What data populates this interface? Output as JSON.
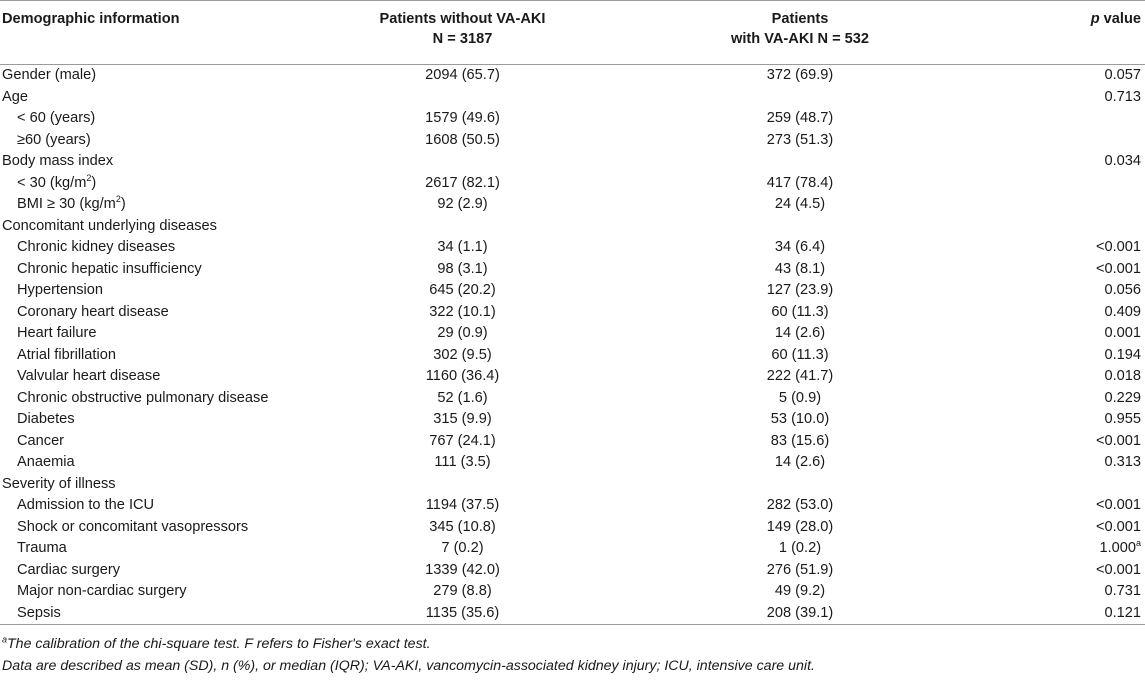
{
  "header": {
    "col1": "Demographic information",
    "col2_line1": "Patients without VA-AKI",
    "col2_line2": "N = 3187",
    "col3_line1": "Patients",
    "col3_line2": "with VA-AKI N = 532",
    "col4_italic": "p",
    "col4_rest": " value"
  },
  "rows": [
    {
      "label": "Gender (male)",
      "a": "2094 (65.7)",
      "b": "372 (69.9)",
      "p": "0.057"
    },
    {
      "label": "Age",
      "a": "",
      "b": "",
      "p": "0.713"
    },
    {
      "label": "< 60 (years)",
      "a": "1579 (49.6)",
      "b": "259 (48.7)",
      "p": ""
    },
    {
      "label": "≥60 (years)",
      "a": "1608 (50.5)",
      "b": "273 (51.3)",
      "p": ""
    },
    {
      "label": "Body mass index",
      "a": "",
      "b": "",
      "p": "0.034"
    },
    {
      "label": "< 30 (kg/m",
      "label_sup": "2",
      "label_tail": ")",
      "a": "2617 (82.1)",
      "b": "417 (78.4)",
      "p": ""
    },
    {
      "label": "BMI ≥ 30 (kg/m",
      "label_sup": "2",
      "label_tail": ")",
      "a": "92 (2.9)",
      "b": "24 (4.5)",
      "p": ""
    },
    {
      "label": "Concomitant underlying diseases",
      "a": "",
      "b": "",
      "p": ""
    },
    {
      "label": "Chronic kidney diseases",
      "a": "34 (1.1)",
      "b": "34 (6.4)",
      "p": "<0.001"
    },
    {
      "label": "Chronic hepatic insufficiency",
      "a": "98 (3.1)",
      "b": "43 (8.1)",
      "p": "<0.001"
    },
    {
      "label": "Hypertension",
      "a": "645 (20.2)",
      "b": "127 (23.9)",
      "p": "0.056"
    },
    {
      "label": "Coronary heart disease",
      "a": "322 (10.1)",
      "b": "60 (11.3)",
      "p": "0.409"
    },
    {
      "label": "Heart failure",
      "a": "29 (0.9)",
      "b": "14 (2.6)",
      "p": "0.001"
    },
    {
      "label": "Atrial fibrillation",
      "a": "302 (9.5)",
      "b": "60 (11.3)",
      "p": "0.194"
    },
    {
      "label": "Valvular heart disease",
      "a": "1160 (36.4)",
      "b": "222 (41.7)",
      "p": "0.018"
    },
    {
      "label": "Chronic obstructive pulmonary disease",
      "a": "52 (1.6)",
      "b": "5 (0.9)",
      "p": "0.229"
    },
    {
      "label": "Diabetes",
      "a": "315 (9.9)",
      "b": "53 (10.0)",
      "p": "0.955"
    },
    {
      "label": "Cancer",
      "a": "767 (24.1)",
      "b": "83 (15.6)",
      "p": "<0.001"
    },
    {
      "label": "Anaemia",
      "a": "111 (3.5)",
      "b": "14 (2.6)",
      "p": "0.313"
    },
    {
      "label": "Severity of illness",
      "a": "",
      "b": "",
      "p": ""
    },
    {
      "label": "Admission to the ICU",
      "a": "1194 (37.5)",
      "b": "282 (53.0)",
      "p": "<0.001"
    },
    {
      "label": "Shock or concomitant vasopressors",
      "a": "345 (10.8)",
      "b": "149 (28.0)",
      "p": "<0.001"
    },
    {
      "label": "Trauma",
      "a": "7 (0.2)",
      "b": "1 (0.2)",
      "p": "1.000",
      "p_sup": "a"
    },
    {
      "label": "Cardiac surgery",
      "a": "1339 (42.0)",
      "b": "276 (51.9)",
      "p": "<0.001"
    },
    {
      "label": "Major non-cardiac surgery",
      "a": "279 (8.8)",
      "b": "49 (9.2)",
      "p": "0.731"
    },
    {
      "label": "Sepsis",
      "a": "1135 (35.6)",
      "b": "208 (39.1)",
      "p": "0.121"
    }
  ],
  "footnotes": {
    "fn1_sup": "a",
    "fn1": "The calibration of the chi-square test. F refers to Fisher's exact test.",
    "fn2": "Data are described as mean (SD), n (%), or median (IQR); VA-AKI, vancomycin-associated kidney injury; ICU, intensive care unit."
  }
}
